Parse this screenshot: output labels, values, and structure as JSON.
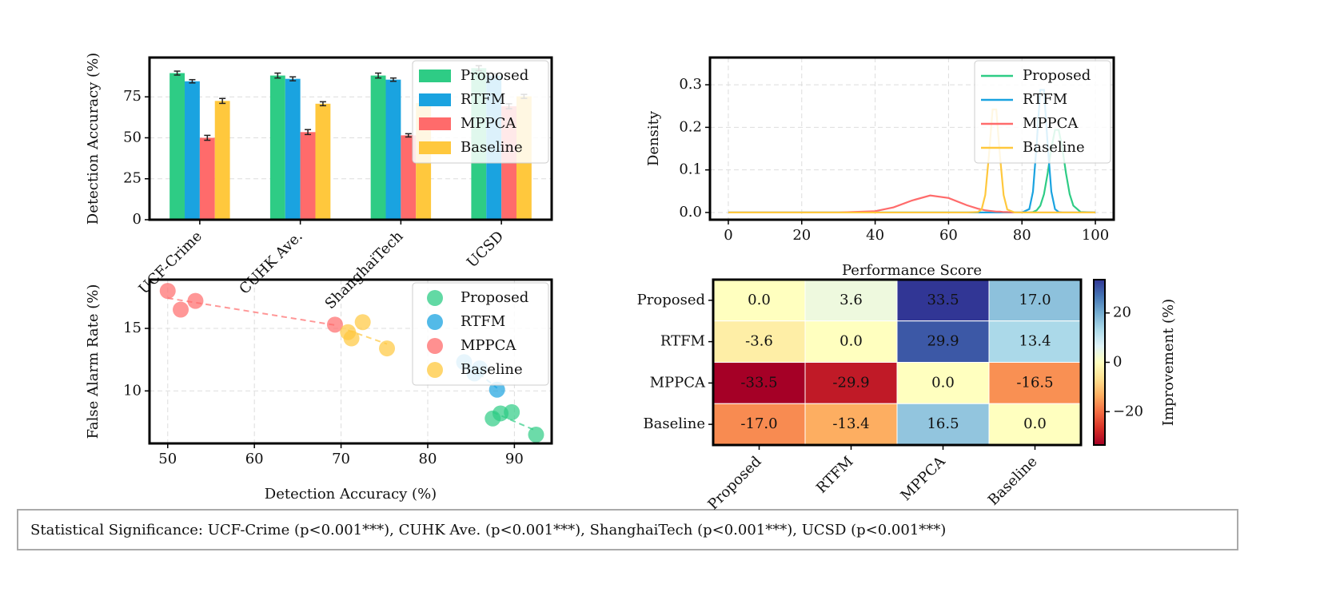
{
  "chart_data": [
    {
      "type": "bar",
      "ylabel": "Detection Accuracy (%)",
      "categories": [
        "UCF-Crime",
        "CUHK Ave.",
        "ShanghaiTech",
        "UCSD"
      ],
      "series": [
        {
          "name": "Proposed",
          "color": "#2ECC85",
          "values": [
            89.5,
            88,
            88,
            92.5
          ],
          "errors": [
            1.2,
            1.5,
            1.5,
            1.5
          ]
        },
        {
          "name": "RTFM",
          "color": "#1AA3E0",
          "values": [
            84.5,
            86,
            85.5,
            88
          ],
          "errors": [
            1,
            1.2,
            1,
            1.2
          ]
        },
        {
          "name": "MPPCA",
          "color": "#FF6B6B",
          "values": [
            50,
            53.5,
            51.5,
            69.3
          ],
          "errors": [
            1.5,
            1.5,
            1,
            1.5
          ]
        },
        {
          "name": "Baseline",
          "color": "#FFC83D",
          "values": [
            72.5,
            70.8,
            71.2,
            75.3
          ],
          "errors": [
            1.5,
            1.2,
            1.2,
            1.2
          ]
        }
      ],
      "ylim": [
        0,
        99
      ],
      "yticks": [
        0,
        25,
        50,
        75
      ],
      "grid": true,
      "legend": "upper right"
    },
    {
      "type": "line",
      "xlabel": "Performance Score",
      "ylabel": "Density",
      "x": [
        0,
        10,
        20,
        30,
        40,
        45,
        50,
        55,
        60,
        65,
        68,
        69,
        70,
        71,
        72,
        73,
        74,
        75,
        76,
        78,
        80,
        82,
        83,
        84,
        85,
        86,
        87,
        88,
        89,
        90,
        91,
        92,
        93,
        94,
        96,
        100
      ],
      "series": [
        {
          "name": "Proposed",
          "color": "#2ECC85",
          "values": [
            0,
            0,
            0,
            0,
            0,
            0,
            0,
            0,
            0,
            0,
            0,
            0,
            0,
            0,
            0,
            0,
            0,
            0,
            0,
            0,
            0,
            0,
            0.001,
            0.005,
            0.016,
            0.043,
            0.092,
            0.151,
            0.194,
            0.194,
            0.151,
            0.092,
            0.043,
            0.016,
            0.001,
            0
          ]
        },
        {
          "name": "RTFM",
          "color": "#1AA3E0",
          "values": [
            0,
            0,
            0,
            0,
            0,
            0,
            0,
            0,
            0,
            0,
            0,
            0,
            0,
            0,
            0,
            0,
            0,
            0,
            0,
            0,
            0,
            0.008,
            0.049,
            0.16,
            0.288,
            0.288,
            0.16,
            0.049,
            0.008,
            0.001,
            0,
            0,
            0,
            0,
            0,
            0
          ]
        },
        {
          "name": "MPPCA",
          "color": "#FF6B6B",
          "values": [
            0,
            0,
            0,
            0,
            0.003,
            0.012,
            0.028,
            0.04,
            0.034,
            0.017,
            0.009,
            0.007,
            0.005,
            0.004,
            0.003,
            0.002,
            0.002,
            0.001,
            0.001,
            0,
            0,
            0,
            0,
            0,
            0,
            0,
            0,
            0,
            0,
            0,
            0,
            0,
            0,
            0,
            0,
            0
          ]
        },
        {
          "name": "Baseline",
          "color": "#FFC83D",
          "values": [
            0,
            0,
            0,
            0,
            0,
            0,
            0,
            0,
            0,
            0,
            0.001,
            0.007,
            0.041,
            0.134,
            0.242,
            0.242,
            0.134,
            0.041,
            0.007,
            0,
            0,
            0,
            0,
            0,
            0,
            0,
            0,
            0,
            0,
            0,
            0,
            0,
            0,
            0,
            0,
            0
          ]
        }
      ],
      "xlim": [
        -5,
        105
      ],
      "xticks": [
        0,
        20,
        40,
        60,
        80,
        100
      ],
      "ylim": [
        -0.017,
        0.364
      ],
      "yticks": [
        {
          "value": 0,
          "label": "0.0"
        },
        0.1,
        0.2,
        0.3
      ],
      "grid": true,
      "legend": "upper right"
    },
    {
      "type": "scatter",
      "xlabel": "Detection Accuracy (%)",
      "ylabel": "False Alarm Rate (%)",
      "series": [
        {
          "name": "Proposed",
          "color": "#2ECC85",
          "x": [
            89.7,
            87.5,
            88.4,
            92.5
          ],
          "values": [
            8.3,
            7.8,
            8.2,
            6.5
          ]
        },
        {
          "name": "RTFM",
          "color": "#1AA3E0",
          "x": [
            84.2,
            85.4,
            86,
            88
          ],
          "values": [
            12.3,
            11.4,
            11.8,
            10.1
          ]
        },
        {
          "name": "MPPCA",
          "color": "#FF6B6B",
          "x": [
            50,
            51.5,
            53.2,
            69.3
          ],
          "values": [
            18,
            16.5,
            17.2,
            15.3
          ]
        },
        {
          "name": "Baseline",
          "color": "#FFC83D",
          "x": [
            72.5,
            70.8,
            71.2,
            75.3
          ],
          "values": [
            15.5,
            14.7,
            14.2,
            13.4
          ]
        }
      ],
      "xlim": [
        47.9,
        94.3
      ],
      "xticks": [
        50,
        60,
        70,
        80,
        90
      ],
      "ylim": [
        5.8,
        18.9
      ],
      "yticks": [
        10,
        15
      ],
      "grid": true,
      "trendlines": true,
      "legend": "upper right"
    },
    {
      "type": "heatmap",
      "colorbar_label": "Improvement (%)",
      "colormap": "RdYlBu",
      "rows": [
        "Proposed",
        "RTFM",
        "MPPCA",
        "Baseline"
      ],
      "columns": [
        "Proposed",
        "RTFM",
        "MPPCA",
        "Baseline"
      ],
      "matrix": [
        [
          0,
          3.6,
          33.5,
          17
        ],
        [
          -3.6,
          0,
          29.9,
          13.4
        ],
        [
          -33.5,
          -29.9,
          0,
          -16.5
        ],
        [
          -17,
          -13.4,
          16.5,
          0
        ]
      ],
      "value_labels": [
        [
          "0.0",
          "3.6",
          "33.5",
          "17.0"
        ],
        [
          "-3.6",
          "0.0",
          "29.9",
          "13.4"
        ],
        [
          "-33.5",
          "-29.9",
          "0.0",
          "-16.5"
        ],
        [
          "-17.0",
          "-13.4",
          "16.5",
          "0.0"
        ]
      ],
      "clim": [
        -33.5,
        33.5
      ],
      "cticks": [
        {
          "value": -20,
          "label": "−20"
        },
        0,
        20
      ]
    }
  ],
  "footnote": "Statistical Significance: UCF-Crime (p<0.001***), CUHK Ave. (p<0.001***), ShanghaiTech (p<0.001***), UCSD (p<0.001***)"
}
